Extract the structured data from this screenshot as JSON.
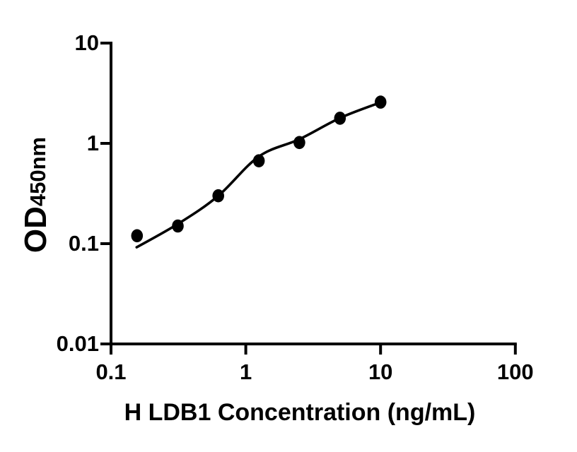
{
  "figure": {
    "background": "#ffffff"
  },
  "chart_data": {
    "type": "scatter",
    "title": "",
    "xlabel": "H LDB1 Concentration (ng/mL)",
    "ylabel": "OD",
    "ylabel_subscript": "450nm",
    "xscale": "log",
    "yscale": "log",
    "xlim": [
      0.1,
      100
    ],
    "ylim": [
      0.01,
      10
    ],
    "grid": false,
    "legend": false,
    "x_ticks": [
      {
        "value": 0.1,
        "label": "0.1"
      },
      {
        "value": 1,
        "label": "1"
      },
      {
        "value": 10,
        "label": "10"
      },
      {
        "value": 100,
        "label": "100"
      }
    ],
    "y_ticks": [
      {
        "value": 0.01,
        "label": "0.01"
      },
      {
        "value": 0.1,
        "label": "0.1"
      },
      {
        "value": 1,
        "label": "1"
      },
      {
        "value": 10,
        "label": "10"
      }
    ],
    "series": [
      {
        "name": "standard data points",
        "type": "scatter",
        "marker": "filled-circle",
        "color": "#000000",
        "points": [
          {
            "x": 0.156,
            "y": 0.12
          },
          {
            "x": 0.313,
            "y": 0.15
          },
          {
            "x": 0.625,
            "y": 0.3
          },
          {
            "x": 1.25,
            "y": 0.67
          },
          {
            "x": 2.5,
            "y": 1.02
          },
          {
            "x": 5,
            "y": 1.78
          },
          {
            "x": 10,
            "y": 2.58
          }
        ]
      },
      {
        "name": "fitted standard curve",
        "type": "line",
        "color": "#000000",
        "points": [
          {
            "x": 0.155,
            "y": 0.092
          },
          {
            "x": 0.32,
            "y": 0.16
          },
          {
            "x": 0.625,
            "y": 0.3
          },
          {
            "x": 1.25,
            "y": 0.74
          },
          {
            "x": 2.5,
            "y": 1.1
          },
          {
            "x": 5,
            "y": 1.79
          },
          {
            "x": 10,
            "y": 2.56
          }
        ]
      }
    ],
    "colors": {
      "axis": "#000000",
      "text": "#000000",
      "marker": "#000000",
      "curve": "#000000"
    }
  }
}
